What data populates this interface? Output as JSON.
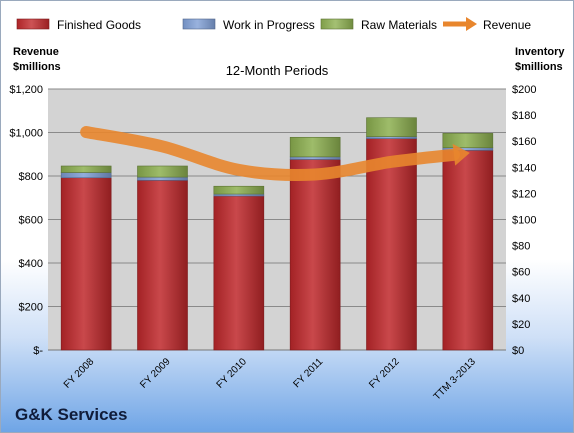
{
  "chart_data": {
    "type": "bar",
    "subtype": "stacked bar with line overlay, dual axis",
    "title": "12-Month Periods",
    "company": "G&K Services",
    "categories": [
      "FY 2008",
      "FY 2009",
      "FY 2010",
      "FY 2011",
      "FY 2012",
      "TTM 3-2013"
    ],
    "left_axis": {
      "label_line1": "Revenue",
      "label_line2": "$millions",
      "ylim": [
        0,
        1200
      ],
      "ticks": [
        0,
        200,
        400,
        600,
        800,
        1000,
        1200
      ],
      "tick_labels": [
        "$-",
        "$200",
        "$400",
        "$600",
        "$800",
        "$1,000",
        "$1,200"
      ]
    },
    "right_axis": {
      "label_line1": "Inventory",
      "label_line2": "$millions",
      "ylim": [
        0,
        200
      ],
      "ticks": [
        0,
        20,
        40,
        60,
        80,
        100,
        120,
        140,
        160,
        180,
        200
      ],
      "tick_labels": [
        "$0",
        "$20",
        "$40",
        "$60",
        "$80",
        "$100",
        "$120",
        "$140",
        "$160",
        "$180",
        "$200"
      ]
    },
    "series": [
      {
        "name": "Finished Goods",
        "axis": "right",
        "kind": "bar",
        "color": "#c0282b",
        "values": [
          132,
          130,
          118,
          146,
          162,
          153
        ]
      },
      {
        "name": "Work in Progress",
        "axis": "right",
        "kind": "bar",
        "color": "#7f9fd6",
        "values": [
          4,
          2.5,
          1.5,
          2,
          1.5,
          2
        ]
      },
      {
        "name": "Raw Materials",
        "axis": "right",
        "kind": "bar",
        "color": "#8db050",
        "values": [
          5,
          8.5,
          6,
          15,
          14.5,
          11
        ]
      },
      {
        "name": "Revenue",
        "axis": "left",
        "kind": "line",
        "color": "#e8862d",
        "values": [
          1002,
          936,
          828,
          807,
          865,
          905
        ]
      }
    ],
    "grid": true,
    "legend_position": "top"
  }
}
